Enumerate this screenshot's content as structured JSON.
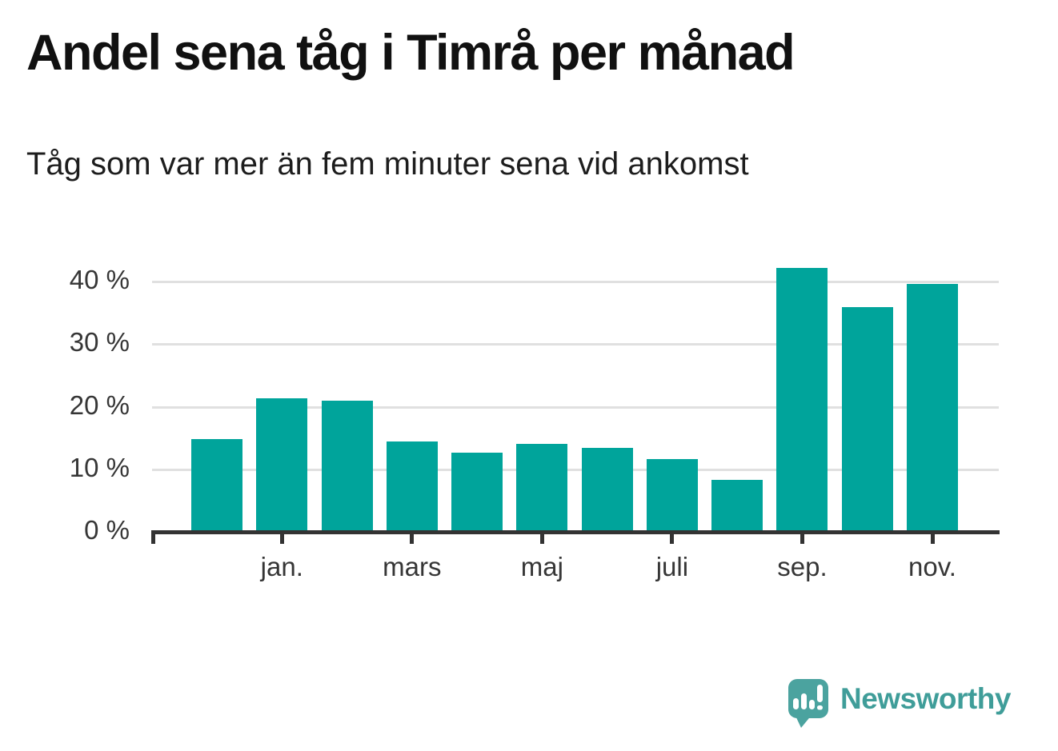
{
  "header": {
    "title": "Andel sena tåg i Timrå per månad",
    "subtitle": "Tåg som var mer än fem minuter sena vid ankomst"
  },
  "chart_data": {
    "type": "bar",
    "title": "Andel sena tåg i Timrå per månad",
    "subtitle": "Tåg som var mer än fem minuter sena vid ankomst",
    "unit": "%",
    "values": [
      14.6,
      21.1,
      20.7,
      14.2,
      12.4,
      13.8,
      13.2,
      11.4,
      8.0,
      41.9,
      35.7,
      39.4
    ],
    "x_tick_labels": [
      "jan.",
      "mars",
      "maj",
      "juli",
      "sep.",
      "nov."
    ],
    "x_tick_bar_indices": [
      1,
      3,
      5,
      7,
      9,
      11
    ],
    "y_ticks": [
      0,
      10,
      20,
      30,
      40
    ],
    "y_tick_labels": [
      "0 %",
      "10 %",
      "20 %",
      "30 %",
      "40 %"
    ],
    "ylim": [
      0,
      45
    ],
    "grid": "horizontal",
    "legend": "none",
    "bar_color": "#00a49b"
  },
  "footer": {
    "brand": "Newsworthy",
    "logo_icon": "newsworthy-speech-bubble-bar-chart-icon"
  },
  "colors": {
    "background": "#ffffff",
    "bar": "#00a49b",
    "axis": "#333333",
    "gridline": "#e0e0e0",
    "tick_text": "#363636",
    "title_text": "#111111",
    "brand_teal": "#3f9d99",
    "logo_bubble": "#4ba39f"
  }
}
